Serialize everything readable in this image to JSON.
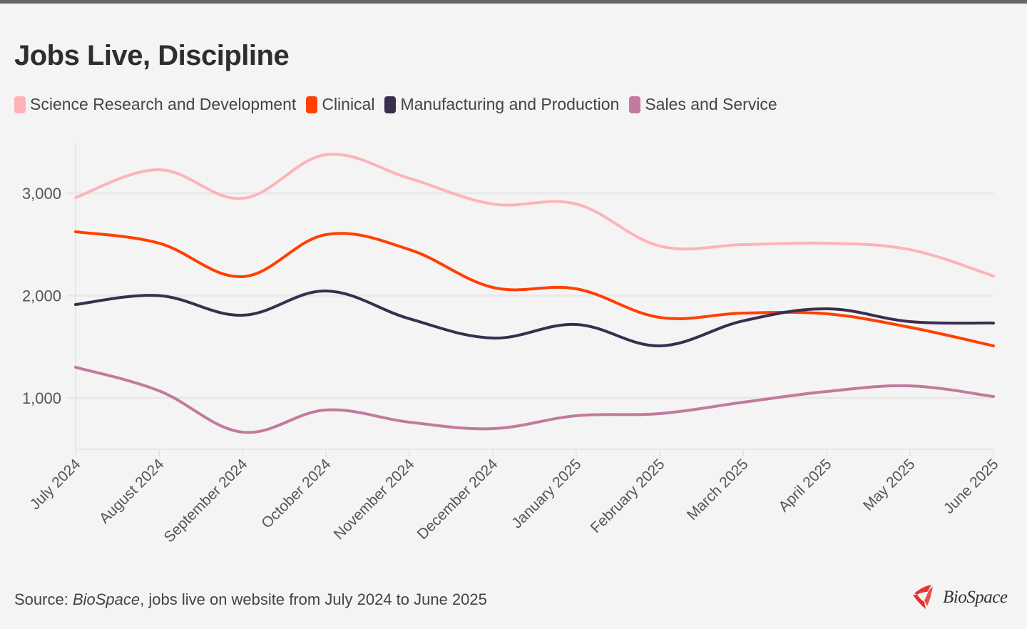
{
  "title": "Jobs Live, Discipline",
  "footer": {
    "prefix": "Source:",
    "source_name": "BioSpace",
    "suffix": ", jobs live on website from July 2024 to June 2025"
  },
  "logo": {
    "text": "BioSpace",
    "icon": "biospace-logo-icon",
    "color": "#e8322b"
  },
  "chart_data": {
    "type": "line",
    "title": "Jobs Live, Discipline",
    "xlabel": "",
    "ylabel": "",
    "ylim": [
      500,
      3500
    ],
    "yticks": [
      1000,
      2000,
      3000
    ],
    "ytick_labels": [
      "1,000",
      "2,000",
      "3,000"
    ],
    "grid": true,
    "legend_position": "top-left",
    "smooth": true,
    "x": [
      "July 2024",
      "August 2024",
      "September 2024",
      "October 2024",
      "November 2024",
      "December 2024",
      "January 2025",
      "February 2025",
      "March 2025",
      "April 2025",
      "May 2025",
      "June 2025"
    ],
    "series": [
      {
        "name": "Science Research and Development",
        "color": "#ffb3b8",
        "values": [
          2958,
          3230,
          2950,
          3376,
          3146,
          2895,
          2895,
          2484,
          2498,
          2512,
          2449,
          2192
        ]
      },
      {
        "name": "Clinical",
        "color": "#ff4000",
        "values": [
          2624,
          2512,
          2185,
          2596,
          2450,
          2080,
          2066,
          1787,
          1829,
          1822,
          1690,
          1509
        ]
      },
      {
        "name": "Manufacturing and Production",
        "color": "#3b2d4f",
        "values": [
          1913,
          2000,
          1808,
          2045,
          1774,
          1585,
          1718,
          1509,
          1753,
          1871,
          1746,
          1732
        ]
      },
      {
        "name": "Sales and Service",
        "color": "#c27a9e",
        "values": [
          1300,
          1070,
          666,
          882,
          763,
          700,
          826,
          847,
          958,
          1063,
          1118,
          1014
        ]
      }
    ]
  }
}
